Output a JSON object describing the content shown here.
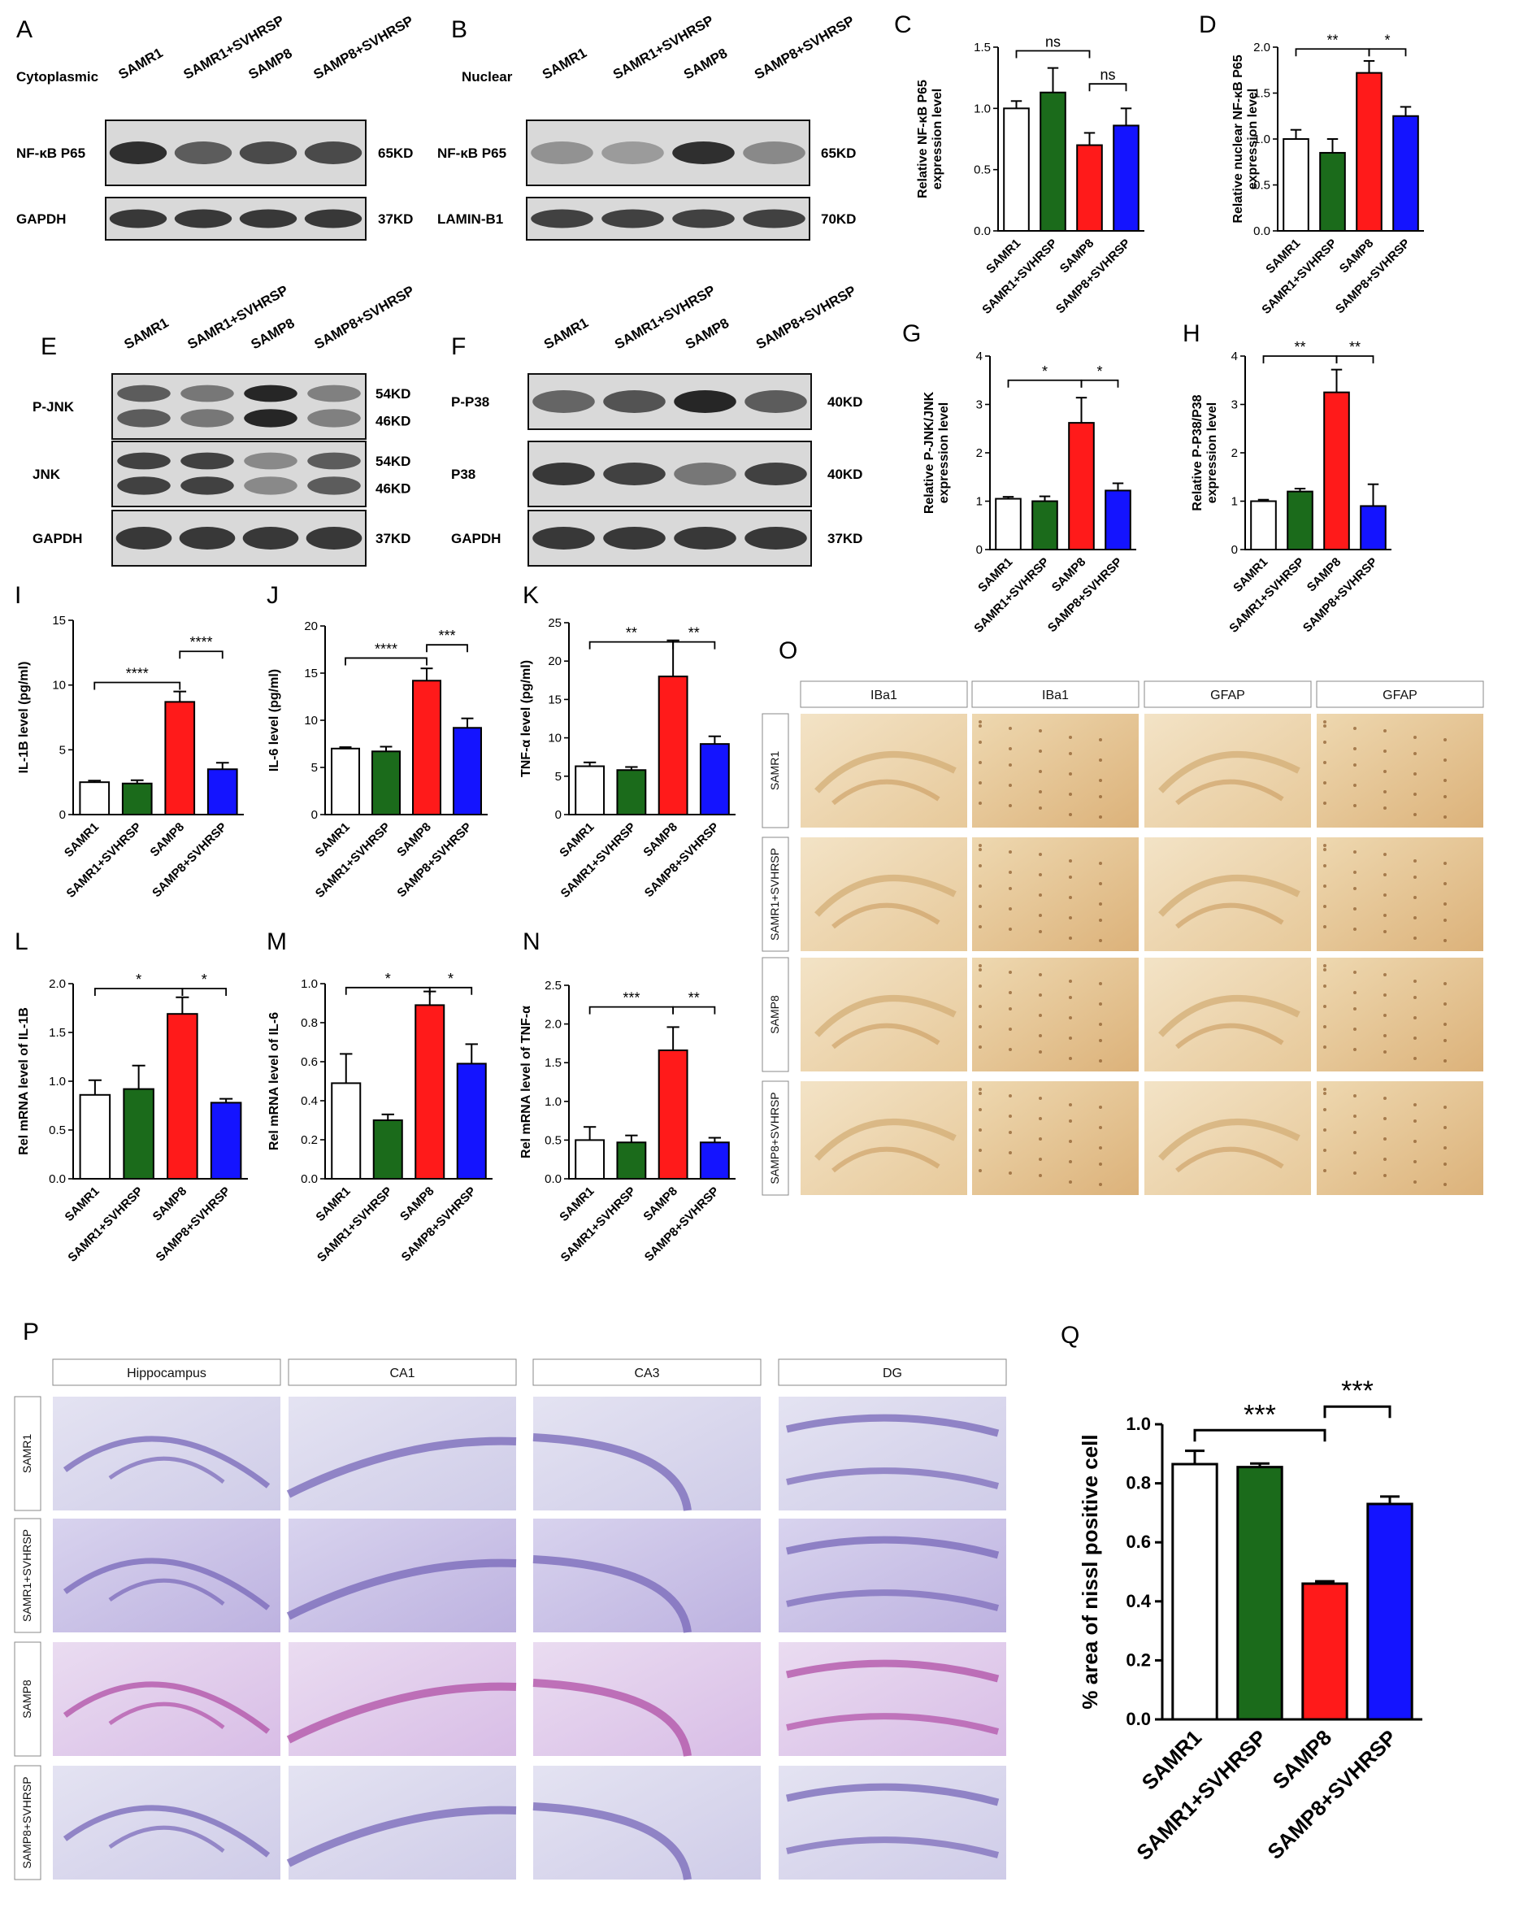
{
  "colors": {
    "SAMR1": "#ffffff",
    "SAMR1+SVHRSP": "#1b6b1b",
    "SAMP8": "#ff1a1a",
    "SAMP8+SVHRSP": "#1414ff"
  },
  "groups": [
    "SAMR1",
    "SAMR1+SVHRSP",
    "SAMP8",
    "SAMP8+SVHRSP"
  ],
  "blots": {
    "A": {
      "panel": "A",
      "fraction": "Cytoplasmic",
      "lanes": [
        "SAMR1",
        "SAMR1+SVHRSP",
        "SAMP8",
        "SAMP8+SVHRSP"
      ],
      "rows": [
        {
          "name": "NF-κB P65",
          "size": "65KD",
          "intensity": [
            0.85,
            0.6,
            0.7,
            0.7
          ]
        },
        {
          "name": "GAPDH",
          "size": "37KD",
          "intensity": [
            0.8,
            0.8,
            0.8,
            0.8
          ]
        }
      ]
    },
    "B": {
      "panel": "B",
      "fraction": "Nuclear",
      "lanes": [
        "SAMR1",
        "SAMR1+SVHRSP",
        "SAMP8",
        "SAMP8+SVHRSP"
      ],
      "rows": [
        {
          "name": "NF-κB P65",
          "size": "65KD",
          "intensity": [
            0.3,
            0.25,
            0.85,
            0.35
          ]
        },
        {
          "name": "LAMIN-B1",
          "size": "70KD",
          "intensity": [
            0.75,
            0.75,
            0.75,
            0.75
          ]
        }
      ]
    },
    "E": {
      "panel": "E",
      "fraction": "",
      "lanes": [
        "SAMR1",
        "SAMR1+SVHRSP",
        "SAMP8",
        "SAMP8+SVHRSP"
      ],
      "rows": [
        {
          "name": "P-JNK",
          "size": "54KD",
          "size2": "46KD",
          "double": true,
          "intensity": [
            0.6,
            0.45,
            0.9,
            0.4
          ]
        },
        {
          "name": "JNK",
          "size": "54KD",
          "size2": "46KD",
          "double": true,
          "intensity": [
            0.75,
            0.75,
            0.35,
            0.6
          ]
        },
        {
          "name": "GAPDH",
          "size": "37KD",
          "intensity": [
            0.8,
            0.8,
            0.8,
            0.8
          ]
        }
      ]
    },
    "F": {
      "panel": "F",
      "fraction": "",
      "lanes": [
        "SAMR1",
        "SAMR1+SVHRSP",
        "SAMP8",
        "SAMP8+SVHRSP"
      ],
      "rows": [
        {
          "name": "P-P38",
          "size": "40KD",
          "intensity": [
            0.55,
            0.65,
            0.9,
            0.6
          ]
        },
        {
          "name": "P38",
          "size": "40KD",
          "intensity": [
            0.8,
            0.75,
            0.45,
            0.75
          ]
        },
        {
          "name": "GAPDH",
          "size": "37KD",
          "intensity": [
            0.8,
            0.8,
            0.8,
            0.8
          ]
        }
      ]
    }
  },
  "chart_data": [
    {
      "panel": "C",
      "type": "bar",
      "categories": [
        "SAMR1",
        "SAMR1+SVHRSP",
        "SAMP8",
        "SAMP8+SVHRSP"
      ],
      "values": [
        1.0,
        1.13,
        0.7,
        0.86
      ],
      "errors": [
        0.06,
        0.2,
        0.1,
        0.14
      ],
      "ylim": [
        0,
        1.5
      ],
      "ticks": [
        0.0,
        0.5,
        1.0,
        1.5
      ],
      "ylabel": "Relative NF-κB P65\nexpression level",
      "sig": [
        {
          "from": 0,
          "to": 2,
          "label": "ns",
          "y": 1.47
        },
        {
          "from": 2,
          "to": 3,
          "label": "ns",
          "y": 1.2
        }
      ]
    },
    {
      "panel": "D",
      "type": "bar",
      "categories": [
        "SAMR1",
        "SAMR1+SVHRSP",
        "SAMP8",
        "SAMP8+SVHRSP"
      ],
      "values": [
        1.0,
        0.85,
        1.72,
        1.25
      ],
      "errors": [
        0.1,
        0.15,
        0.13,
        0.1
      ],
      "ylim": [
        0,
        2.0
      ],
      "ticks": [
        0.0,
        0.5,
        1.0,
        1.5,
        2.0
      ],
      "ylabel": "Relative nuclear NF-κB P65\nexpression level",
      "sig": [
        {
          "from": 0,
          "to": 2,
          "label": "**",
          "y": 1.98
        },
        {
          "from": 2,
          "to": 3,
          "label": "*",
          "y": 1.98
        }
      ]
    },
    {
      "panel": "G",
      "type": "bar",
      "categories": [
        "SAMR1",
        "SAMR1+SVHRSP",
        "SAMP8",
        "SAMP8+SVHRSP"
      ],
      "values": [
        1.05,
        1.0,
        2.62,
        1.22
      ],
      "errors": [
        0.04,
        0.1,
        0.52,
        0.15
      ],
      "ylim": [
        0,
        4
      ],
      "ticks": [
        0,
        1,
        2,
        3,
        4
      ],
      "ylabel": "Relative P-JNK/JNK\nexpression level",
      "sig": [
        {
          "from": 0,
          "to": 2,
          "label": "*",
          "y": 3.5
        },
        {
          "from": 2,
          "to": 3,
          "label": "*",
          "y": 3.5
        }
      ]
    },
    {
      "panel": "H",
      "type": "bar",
      "categories": [
        "SAMR1",
        "SAMR1+SVHRSP",
        "SAMP8",
        "SAMP8+SVHRSP"
      ],
      "values": [
        1.0,
        1.2,
        3.25,
        0.9
      ],
      "errors": [
        0.03,
        0.06,
        0.47,
        0.45
      ],
      "ylim": [
        0,
        4
      ],
      "ticks": [
        0,
        1,
        2,
        3,
        4
      ],
      "ylabel": "Relative P-P38/P38\nexpression level",
      "sig": [
        {
          "from": 0,
          "to": 2,
          "label": "**",
          "y": 4.0
        },
        {
          "from": 2,
          "to": 3,
          "label": "**",
          "y": 4.0
        }
      ]
    },
    {
      "panel": "I",
      "type": "bar",
      "categories": [
        "SAMR1",
        "SAMR1+SVHRSP",
        "SAMP8",
        "SAMP8+SVHRSP"
      ],
      "values": [
        2.5,
        2.4,
        8.7,
        3.5
      ],
      "errors": [
        0.12,
        0.25,
        0.8,
        0.5
      ],
      "ylim": [
        0,
        15
      ],
      "ticks": [
        0,
        5,
        10,
        15
      ],
      "ylabel": "IL-1B level (pg/ml)",
      "sig": [
        {
          "from": 0,
          "to": 2,
          "label": "****",
          "y": 10.2
        },
        {
          "from": 2,
          "to": 3,
          "label": "****",
          "y": 12.6
        }
      ]
    },
    {
      "panel": "J",
      "type": "bar",
      "categories": [
        "SAMR1",
        "SAMR1+SVHRSP",
        "SAMP8",
        "SAMP8+SVHRSP"
      ],
      "values": [
        7.0,
        6.7,
        14.2,
        9.2
      ],
      "errors": [
        0.15,
        0.5,
        1.3,
        1.0
      ],
      "ylim": [
        0,
        20
      ],
      "ticks": [
        0,
        5,
        10,
        15,
        20
      ],
      "ylabel": "IL-6 level (pg/ml)",
      "sig": [
        {
          "from": 0,
          "to": 2,
          "label": "****",
          "y": 16.6
        },
        {
          "from": 2,
          "to": 3,
          "label": "***",
          "y": 18.0
        }
      ]
    },
    {
      "panel": "K",
      "type": "bar",
      "categories": [
        "SAMR1",
        "SAMR1+SVHRSP",
        "SAMP8",
        "SAMP8+SVHRSP"
      ],
      "values": [
        6.3,
        5.8,
        18.0,
        9.2
      ],
      "errors": [
        0.5,
        0.4,
        4.7,
        1.0
      ],
      "ylim": [
        0,
        25
      ],
      "ticks": [
        0,
        5,
        10,
        15,
        20,
        25
      ],
      "ylabel": "TNF-α level (pg/ml)",
      "sig": [
        {
          "from": 0,
          "to": 2,
          "label": "**",
          "y": 22.5
        },
        {
          "from": 2,
          "to": 3,
          "label": "**",
          "y": 22.5
        }
      ]
    },
    {
      "panel": "L",
      "type": "bar",
      "categories": [
        "SAMR1",
        "SAMR1+SVHRSP",
        "SAMP8",
        "SAMP8+SVHRSP"
      ],
      "values": [
        0.86,
        0.92,
        1.69,
        0.78
      ],
      "errors": [
        0.15,
        0.24,
        0.17,
        0.04
      ],
      "ylim": [
        0,
        2.0
      ],
      "ticks": [
        0.0,
        0.5,
        1.0,
        1.5,
        2.0
      ],
      "ylabel": "Rel mRNA level of IL-1B",
      "sig": [
        {
          "from": 0,
          "to": 2,
          "label": "*",
          "y": 1.95
        },
        {
          "from": 2,
          "to": 3,
          "label": "*",
          "y": 1.95
        }
      ]
    },
    {
      "panel": "M",
      "type": "bar",
      "categories": [
        "SAMR1",
        "SAMR1+SVHRSP",
        "SAMP8",
        "SAMP8+SVHRSP"
      ],
      "values": [
        0.49,
        0.3,
        0.89,
        0.59
      ],
      "errors": [
        0.15,
        0.03,
        0.07,
        0.1
      ],
      "ylim": [
        0,
        1.0
      ],
      "ticks": [
        0.0,
        0.2,
        0.4,
        0.6,
        0.8,
        1.0
      ],
      "ylabel": "Rel mRNA level of IL-6",
      "sig": [
        {
          "from": 0,
          "to": 2,
          "label": "*",
          "y": 0.98
        },
        {
          "from": 2,
          "to": 3,
          "label": "*",
          "y": 0.98
        }
      ]
    },
    {
      "panel": "N",
      "type": "bar",
      "categories": [
        "SAMR1",
        "SAMR1+SVHRSP",
        "SAMP8",
        "SAMP8+SVHRSP"
      ],
      "values": [
        0.5,
        0.47,
        1.66,
        0.47
      ],
      "errors": [
        0.17,
        0.09,
        0.3,
        0.06
      ],
      "ylim": [
        0,
        2.5
      ],
      "ticks": [
        0.0,
        0.5,
        1.0,
        1.5,
        2.0,
        2.5
      ],
      "ylabel": "Rel mRNA level of TNF-α",
      "sig": [
        {
          "from": 0,
          "to": 2,
          "label": "***",
          "y": 2.22
        },
        {
          "from": 2,
          "to": 3,
          "label": "**",
          "y": 2.22
        }
      ]
    },
    {
      "panel": "Q",
      "type": "bar",
      "categories": [
        "SAMR1",
        "SAMR1+SVHRSP",
        "SAMP8",
        "SAMP8+SVHRSP"
      ],
      "values": [
        0.865,
        0.855,
        0.46,
        0.73
      ],
      "errors": [
        0.045,
        0.012,
        0.008,
        0.025
      ],
      "ylim": [
        0,
        1.0
      ],
      "ticks": [
        0.0,
        0.2,
        0.4,
        0.6,
        0.8,
        1.0
      ],
      "ylabel": "% area of nissl positive cell",
      "sig": [
        {
          "from": 0,
          "to": 2,
          "label": "***",
          "y": 0.98
        },
        {
          "from": 2,
          "to": 3,
          "label": "***",
          "y": 1.06
        }
      ]
    }
  ],
  "ihc_O": {
    "panel": "O",
    "columns": [
      "IBa1",
      "IBa1",
      "GFAP",
      "GFAP"
    ],
    "rows": [
      "SAMR1",
      "SAMR1+SVHRSP",
      "SAMP8",
      "SAMP8+SVHRSP"
    ]
  },
  "nissl_P": {
    "panel": "P",
    "columns": [
      "Hippocampus",
      "CA1",
      "CA3",
      "DG"
    ],
    "rows": [
      "SAMR1",
      "SAMR1+SVHRSP",
      "SAMP8",
      "SAMP8+SVHRSP"
    ]
  }
}
